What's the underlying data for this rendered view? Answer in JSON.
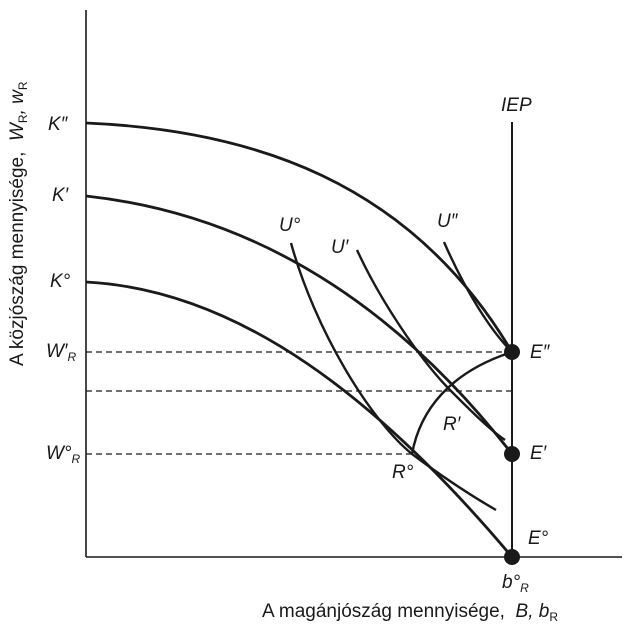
{
  "axes": {
    "y_label_text": "A közjószág mennyisége,",
    "y_label_vars": "W",
    "y_label_sub1": "R",
    "y_label_sep": ", w",
    "y_label_sub2": "R",
    "x_label_text": "A magánjószág mennyisége,",
    "x_label_var1": "B",
    "x_label_sep": ", b",
    "x_label_sub": "R"
  },
  "labels": {
    "K2": "K″",
    "K1": "K′",
    "K0": "K°",
    "W1": "W′",
    "W1_sub": "R",
    "W0": "W°",
    "W0_sub": "R",
    "IEP": "IEP",
    "U0": "U°",
    "U1": "U′",
    "U2": "U″",
    "E2": "E″",
    "E1": "E′",
    "E0": "E°",
    "R1": "R′",
    "R0": "R°",
    "b0": "b°",
    "b0_sub": "R"
  }
}
